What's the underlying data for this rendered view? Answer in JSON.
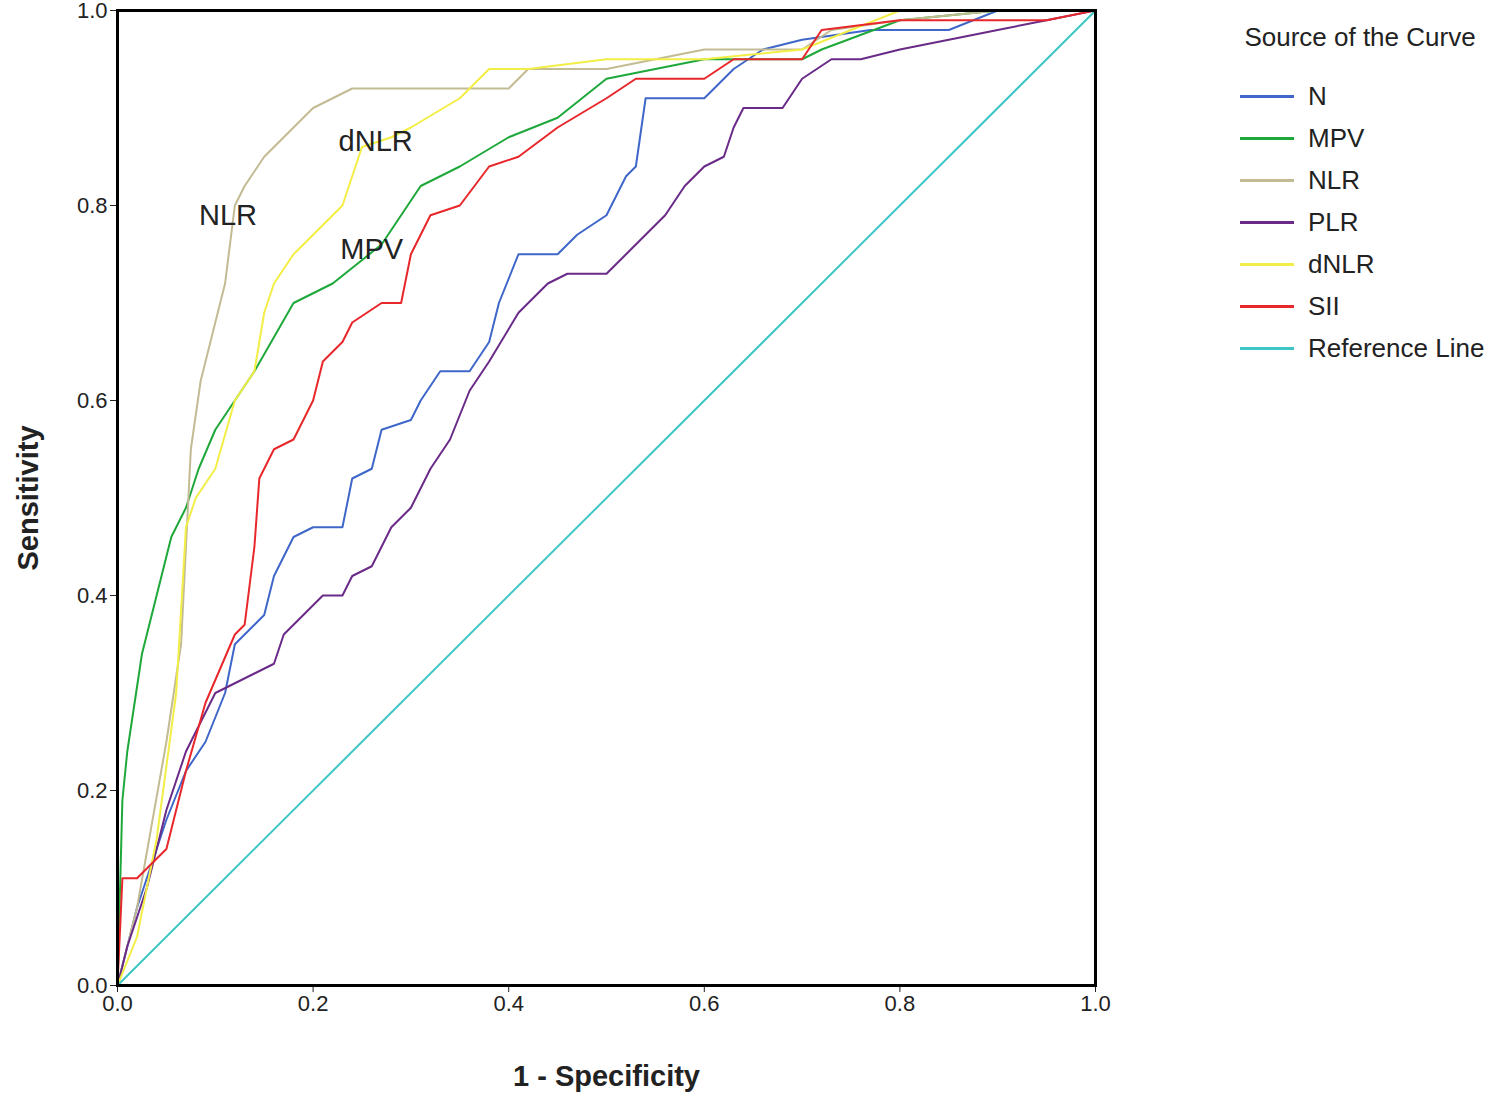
{
  "chart_data": {
    "type": "line",
    "xlabel": "1 - Specificity",
    "ylabel": "Sensitivity",
    "xlim": [
      0,
      1
    ],
    "ylim": [
      0,
      1
    ],
    "xticks": [
      {
        "value": 0,
        "label": "0.0"
      },
      {
        "value": 0.2,
        "label": "0.2"
      },
      {
        "value": 0.4,
        "label": "0.4"
      },
      {
        "value": 0.6,
        "label": "0.6"
      },
      {
        "value": 0.8,
        "label": "0.8"
      },
      {
        "value": 1,
        "label": "1.0"
      }
    ],
    "yticks": [
      {
        "value": 0,
        "label": "0.0"
      },
      {
        "value": 0.2,
        "label": "0.2"
      },
      {
        "value": 0.4,
        "label": "0.4"
      },
      {
        "value": 0.6,
        "label": "0.6"
      },
      {
        "value": 0.8,
        "label": "0.8"
      },
      {
        "value": 1,
        "label": "1.0"
      }
    ],
    "grid": false,
    "legend": "right",
    "legend_title": "Source of the Curve",
    "annotations": [
      {
        "text": "NLR",
        "x": 0.113,
        "y": 0.79
      },
      {
        "text": "dNLR",
        "x": 0.264,
        "y": 0.865
      },
      {
        "text": "MPV",
        "x": 0.26,
        "y": 0.755
      }
    ],
    "series": [
      {
        "name": "N",
        "color": "#3f67c9",
        "x": [
          0,
          0.02,
          0.05,
          0.07,
          0.09,
          0.11,
          0.12,
          0.14,
          0.15,
          0.16,
          0.17,
          0.18,
          0.2,
          0.23,
          0.24,
          0.26,
          0.27,
          0.3,
          0.31,
          0.33,
          0.36,
          0.38,
          0.39,
          0.41,
          0.45,
          0.47,
          0.5,
          0.52,
          0.53,
          0.54,
          0.6,
          0.63,
          0.66,
          0.7,
          0.77,
          0.85,
          0.9,
          1
        ],
        "values": [
          0,
          0.08,
          0.17,
          0.22,
          0.25,
          0.3,
          0.35,
          0.37,
          0.38,
          0.42,
          0.44,
          0.46,
          0.47,
          0.47,
          0.52,
          0.53,
          0.57,
          0.58,
          0.6,
          0.63,
          0.63,
          0.66,
          0.7,
          0.75,
          0.75,
          0.77,
          0.79,
          0.83,
          0.84,
          0.91,
          0.91,
          0.94,
          0.96,
          0.97,
          0.98,
          0.98,
          1,
          1
        ]
      },
      {
        "name": "MPV",
        "color": "#1fa83a",
        "x": [
          0,
          0.005,
          0.01,
          0.025,
          0.04,
          0.055,
          0.07,
          0.083,
          0.1,
          0.14,
          0.18,
          0.22,
          0.27,
          0.31,
          0.35,
          0.4,
          0.45,
          0.5,
          0.55,
          0.6,
          0.7,
          0.72,
          0.8,
          0.9,
          1
        ],
        "values": [
          0,
          0.19,
          0.24,
          0.34,
          0.4,
          0.46,
          0.49,
          0.53,
          0.57,
          0.63,
          0.7,
          0.72,
          0.76,
          0.82,
          0.84,
          0.87,
          0.89,
          0.93,
          0.94,
          0.95,
          0.95,
          0.96,
          0.99,
          1,
          1
        ]
      },
      {
        "name": "NLR",
        "color": "#c2bb93",
        "x": [
          0,
          0.02,
          0.05,
          0.065,
          0.075,
          0.085,
          0.1,
          0.11,
          0.12,
          0.13,
          0.15,
          0.17,
          0.2,
          0.24,
          0.3,
          0.4,
          0.42,
          0.5,
          0.6,
          0.7,
          0.73,
          0.8,
          0.9,
          1
        ],
        "values": [
          0,
          0.08,
          0.25,
          0.35,
          0.55,
          0.62,
          0.68,
          0.72,
          0.8,
          0.82,
          0.85,
          0.87,
          0.9,
          0.92,
          0.92,
          0.92,
          0.94,
          0.94,
          0.96,
          0.96,
          0.98,
          0.99,
          1,
          1
        ]
      },
      {
        "name": "PLR",
        "color": "#6a2a88",
        "x": [
          0,
          0.01,
          0.03,
          0.05,
          0.07,
          0.1,
          0.12,
          0.14,
          0.16,
          0.17,
          0.19,
          0.21,
          0.23,
          0.24,
          0.26,
          0.28,
          0.3,
          0.32,
          0.34,
          0.36,
          0.38,
          0.41,
          0.44,
          0.46,
          0.5,
          0.52,
          0.54,
          0.56,
          0.58,
          0.6,
          0.62,
          0.63,
          0.64,
          0.68,
          0.7,
          0.73,
          0.76,
          0.8,
          0.85,
          0.9,
          0.95,
          1
        ],
        "values": [
          0,
          0.04,
          0.1,
          0.18,
          0.24,
          0.3,
          0.31,
          0.32,
          0.33,
          0.36,
          0.38,
          0.4,
          0.4,
          0.42,
          0.43,
          0.47,
          0.49,
          0.53,
          0.56,
          0.61,
          0.64,
          0.69,
          0.72,
          0.73,
          0.73,
          0.75,
          0.77,
          0.79,
          0.82,
          0.84,
          0.85,
          0.88,
          0.9,
          0.9,
          0.93,
          0.95,
          0.95,
          0.96,
          0.97,
          0.98,
          0.99,
          1
        ]
      },
      {
        "name": "dNLR",
        "color": "#f3ee45",
        "x": [
          0,
          0.02,
          0.04,
          0.06,
          0.07,
          0.08,
          0.1,
          0.12,
          0.14,
          0.15,
          0.16,
          0.18,
          0.2,
          0.23,
          0.25,
          0.28,
          0.3,
          0.35,
          0.38,
          0.42,
          0.5,
          0.6,
          0.7,
          0.8,
          1
        ],
        "values": [
          0,
          0.05,
          0.15,
          0.3,
          0.47,
          0.5,
          0.53,
          0.6,
          0.63,
          0.69,
          0.72,
          0.75,
          0.77,
          0.8,
          0.86,
          0.87,
          0.88,
          0.91,
          0.94,
          0.94,
          0.95,
          0.95,
          0.96,
          1,
          1
        ]
      },
      {
        "name": "SII",
        "color": "#e8272b",
        "x": [
          0,
          0.005,
          0.02,
          0.03,
          0.05,
          0.07,
          0.09,
          0.12,
          0.13,
          0.14,
          0.145,
          0.16,
          0.18,
          0.2,
          0.21,
          0.23,
          0.24,
          0.27,
          0.29,
          0.3,
          0.32,
          0.35,
          0.38,
          0.41,
          0.45,
          0.5,
          0.53,
          0.6,
          0.63,
          0.7,
          0.72,
          0.8,
          0.95,
          1
        ],
        "values": [
          0,
          0.11,
          0.11,
          0.12,
          0.14,
          0.22,
          0.29,
          0.36,
          0.37,
          0.45,
          0.52,
          0.55,
          0.56,
          0.6,
          0.64,
          0.66,
          0.68,
          0.7,
          0.7,
          0.75,
          0.79,
          0.8,
          0.84,
          0.85,
          0.88,
          0.91,
          0.93,
          0.93,
          0.95,
          0.95,
          0.98,
          0.99,
          0.99,
          1
        ]
      },
      {
        "name": "Reference Line",
        "color": "#3ec6c6",
        "x": [
          0,
          1
        ],
        "values": [
          0,
          1
        ]
      }
    ]
  }
}
